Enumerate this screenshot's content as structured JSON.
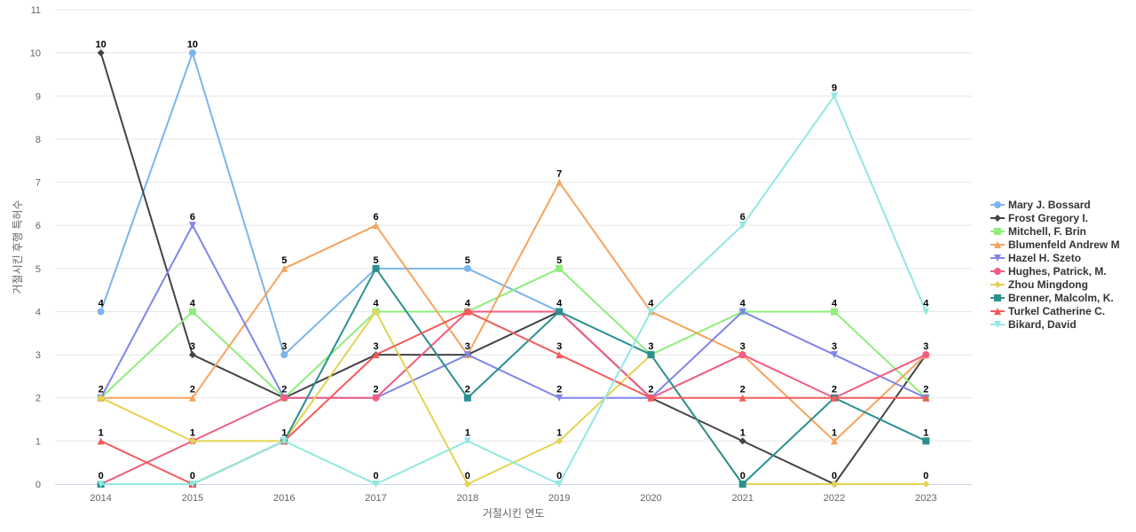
{
  "chart_data": {
    "type": "line",
    "xlabel": "거절시킨 연도",
    "ylabel": "거절시킨 후행 특허수",
    "categories": [
      "2014",
      "2015",
      "2016",
      "2017",
      "2018",
      "2019",
      "2020",
      "2021",
      "2022",
      "2023"
    ],
    "ylim": [
      0,
      11
    ],
    "yticks": [
      "0",
      "1",
      "2",
      "3",
      "4",
      "5",
      "6",
      "7",
      "8",
      "9",
      "10",
      "11"
    ],
    "grid": true,
    "legend_position": "right",
    "series": [
      {
        "name": "Mary J. Bossard",
        "color": "#7cb5ec",
        "marker": "circle",
        "values": [
          4,
          10,
          3,
          5,
          5,
          4,
          null,
          null,
          null,
          null
        ]
      },
      {
        "name": "Frost Gregory I.",
        "color": "#434348",
        "marker": "diamond",
        "values": [
          10,
          3,
          2,
          3,
          3,
          4,
          2,
          1,
          0,
          3
        ]
      },
      {
        "name": "Mitchell, F. Brin",
        "color": "#90ed7d",
        "marker": "square",
        "values": [
          2,
          4,
          2,
          4,
          4,
          5,
          3,
          4,
          4,
          2
        ]
      },
      {
        "name": "Blumenfeld Andrew M",
        "color": "#f7a35c",
        "marker": "triangle",
        "values": [
          2,
          2,
          5,
          6,
          3,
          7,
          4,
          3,
          1,
          3
        ]
      },
      {
        "name": "Hazel H. Szeto",
        "color": "#8085e9",
        "marker": "triangle-down",
        "values": [
          2,
          6,
          2,
          2,
          3,
          2,
          2,
          4,
          3,
          2
        ]
      },
      {
        "name": "Hughes, Patrick, M.",
        "color": "#f15c80",
        "marker": "circle",
        "values": [
          0,
          1,
          2,
          2,
          4,
          4,
          2,
          3,
          2,
          3
        ]
      },
      {
        "name": "Zhou Mingdong",
        "color": "#e4d354",
        "marker": "diamond",
        "values": [
          2,
          1,
          1,
          4,
          0,
          1,
          3,
          0,
          0,
          0
        ]
      },
      {
        "name": "Brenner, Malcolm, K.",
        "color": "#2b908f",
        "marker": "square",
        "values": [
          0,
          0,
          1,
          5,
          2,
          4,
          3,
          0,
          2,
          1
        ]
      },
      {
        "name": "Turkel Catherine C.",
        "color": "#f45b5b",
        "marker": "triangle",
        "values": [
          1,
          0,
          1,
          3,
          4,
          3,
          2,
          2,
          2,
          2
        ]
      },
      {
        "name": "Bikard, David",
        "color": "#91e8e1",
        "marker": "triangle-down",
        "values": [
          0,
          0,
          1,
          0,
          1,
          0,
          4,
          6,
          9,
          4
        ]
      }
    ],
    "data_labels": [
      {
        "x": "2014",
        "y": 10,
        "text": "10"
      },
      {
        "x": "2015",
        "y": 10,
        "text": "10"
      },
      {
        "x": "2015",
        "y": 6,
        "text": "6"
      },
      {
        "x": "2017",
        "y": 6,
        "text": "6"
      },
      {
        "x": "2019",
        "y": 7,
        "text": "7"
      },
      {
        "x": "2021",
        "y": 6,
        "text": "6"
      },
      {
        "x": "2022",
        "y": 9,
        "text": "9"
      },
      {
        "x": "2016",
        "y": 5,
        "text": "5"
      },
      {
        "x": "2017",
        "y": 5,
        "text": "5"
      },
      {
        "x": "2018",
        "y": 5,
        "text": "5"
      },
      {
        "x": "2019",
        "y": 5,
        "text": "5"
      },
      {
        "x": "2014",
        "y": 4,
        "text": "4"
      },
      {
        "x": "2015",
        "y": 4,
        "text": "4"
      },
      {
        "x": "2017",
        "y": 4,
        "text": "4"
      },
      {
        "x": "2018",
        "y": 4,
        "text": "4"
      },
      {
        "x": "2019",
        "y": 4,
        "text": "4"
      },
      {
        "x": "2020",
        "y": 4,
        "text": "4"
      },
      {
        "x": "2021",
        "y": 4,
        "text": "4"
      },
      {
        "x": "2022",
        "y": 4,
        "text": "4"
      },
      {
        "x": "2023",
        "y": 4,
        "text": "4"
      },
      {
        "x": "2015",
        "y": 3,
        "text": "3"
      },
      {
        "x": "2016",
        "y": 3,
        "text": "3"
      },
      {
        "x": "2017",
        "y": 3,
        "text": "3"
      },
      {
        "x": "2018",
        "y": 3,
        "text": "3"
      },
      {
        "x": "2019",
        "y": 3,
        "text": "3"
      },
      {
        "x": "2020",
        "y": 3,
        "text": "3"
      },
      {
        "x": "2021",
        "y": 3,
        "text": "3"
      },
      {
        "x": "2022",
        "y": 3,
        "text": "3"
      },
      {
        "x": "2023",
        "y": 3,
        "text": "3"
      },
      {
        "x": "2014",
        "y": 2,
        "text": "2"
      },
      {
        "x": "2015",
        "y": 2,
        "text": "2"
      },
      {
        "x": "2016",
        "y": 2,
        "text": "2"
      },
      {
        "x": "2017",
        "y": 2,
        "text": "2"
      },
      {
        "x": "2018",
        "y": 2,
        "text": "2"
      },
      {
        "x": "2019",
        "y": 2,
        "text": "2"
      },
      {
        "x": "2020",
        "y": 2,
        "text": "2"
      },
      {
        "x": "2021",
        "y": 2,
        "text": "2"
      },
      {
        "x": "2022",
        "y": 2,
        "text": "2"
      },
      {
        "x": "2023",
        "y": 2,
        "text": "2"
      },
      {
        "x": "2014",
        "y": 1,
        "text": "1"
      },
      {
        "x": "2015",
        "y": 1,
        "text": "1"
      },
      {
        "x": "2016",
        "y": 1,
        "text": "1"
      },
      {
        "x": "2018",
        "y": 1,
        "text": "1"
      },
      {
        "x": "2019",
        "y": 1,
        "text": "1"
      },
      {
        "x": "2021",
        "y": 1,
        "text": "1"
      },
      {
        "x": "2022",
        "y": 1,
        "text": "1"
      },
      {
        "x": "2023",
        "y": 1,
        "text": "1"
      },
      {
        "x": "2014",
        "y": 0,
        "text": "0"
      },
      {
        "x": "2015",
        "y": 0,
        "text": "0"
      },
      {
        "x": "2017",
        "y": 0,
        "text": "0"
      },
      {
        "x": "2018",
        "y": 0,
        "text": "0"
      },
      {
        "x": "2019",
        "y": 0,
        "text": "0"
      },
      {
        "x": "2021",
        "y": 0,
        "text": "0"
      },
      {
        "x": "2022",
        "y": 0,
        "text": "0"
      },
      {
        "x": "2023",
        "y": 0,
        "text": "0"
      }
    ]
  }
}
